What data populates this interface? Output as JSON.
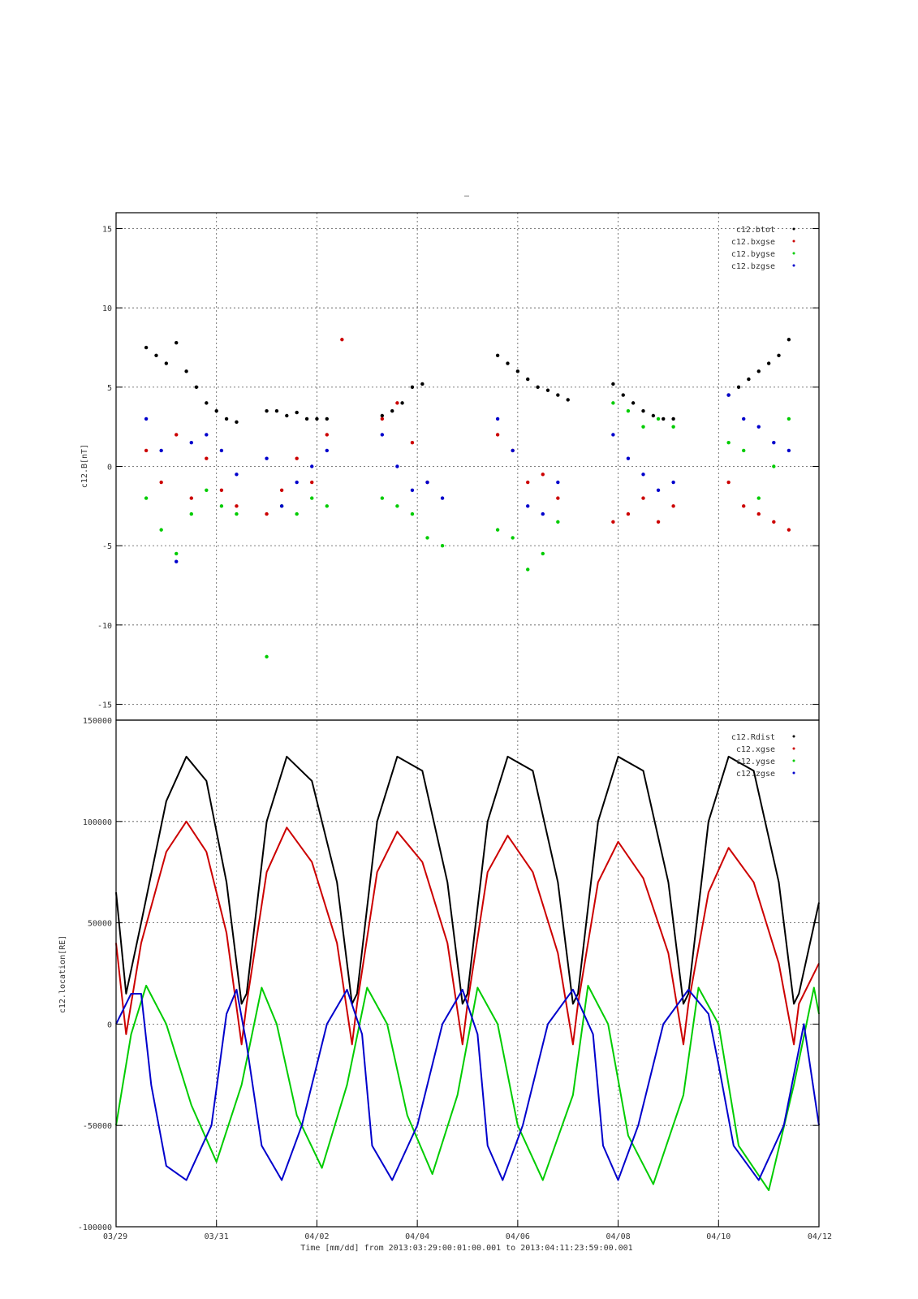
{
  "page_title_mark": "–",
  "footer_label": "Time [mm/dd]  from 2013:03:29:00:01:00.001  to  2013:04:11:23:59:00.001",
  "x_ticks": [
    "03/29",
    "03/31",
    "04/02",
    "04/04",
    "04/06",
    "04/08",
    "04/10",
    "04/12"
  ],
  "chart_data": [
    {
      "type": "scatter",
      "title": "",
      "ylabel": "c12.B[nT]",
      "xlabel": "Time [mm/dd]",
      "x_unit": "days since 03/29 00:00",
      "xlim": [
        0,
        14
      ],
      "ylim": [
        -16,
        16
      ],
      "yticks": [
        -15,
        -10,
        -5,
        0,
        5,
        10,
        15
      ],
      "ytick_labels": [
        "-15",
        "-10",
        "-5",
        "0",
        "5",
        "10",
        "15"
      ],
      "grid": true,
      "legend_position": "top-right",
      "series": [
        {
          "name": "c12.btot",
          "color": "#000000",
          "x": [
            0.6,
            0.8,
            1.0,
            1.2,
            1.4,
            1.6,
            1.8,
            2.0,
            2.2,
            2.4,
            3.0,
            3.2,
            3.4,
            3.6,
            3.8,
            4.0,
            4.2,
            5.3,
            5.5,
            5.7,
            5.9,
            6.1,
            7.6,
            7.8,
            8.0,
            8.2,
            8.4,
            8.6,
            8.8,
            9.0,
            9.9,
            10.1,
            10.3,
            10.5,
            10.7,
            10.9,
            11.1,
            12.2,
            12.4,
            12.6,
            12.8,
            13.0,
            13.2,
            13.4
          ],
          "y": [
            7.5,
            7.0,
            6.5,
            7.8,
            6.0,
            5.0,
            4.0,
            3.5,
            3.0,
            2.8,
            3.5,
            3.5,
            3.2,
            3.4,
            3.0,
            3.0,
            3.0,
            3.2,
            3.5,
            4.0,
            5.0,
            5.2,
            7.0,
            6.5,
            6.0,
            5.5,
            5.0,
            4.8,
            4.5,
            4.2,
            5.2,
            4.5,
            4.0,
            3.5,
            3.2,
            3.0,
            3.0,
            4.5,
            5.0,
            5.5,
            6.0,
            6.5,
            7.0,
            8.0
          ]
        },
        {
          "name": "c12.bxgse",
          "color": "#cc0000",
          "x": [
            0.6,
            0.9,
            1.2,
            1.5,
            1.8,
            2.1,
            2.4,
            3.0,
            3.3,
            3.6,
            3.9,
            4.2,
            4.5,
            5.3,
            5.6,
            5.9,
            6.2,
            7.6,
            7.9,
            8.2,
            8.5,
            8.8,
            9.9,
            10.2,
            10.5,
            10.8,
            11.1,
            12.2,
            12.5,
            12.8,
            13.1,
            13.4
          ],
          "y": [
            1.0,
            -1.0,
            2.0,
            -2.0,
            0.5,
            -1.5,
            -2.5,
            -3.0,
            -1.5,
            0.5,
            -1.0,
            2.0,
            8.0,
            3.0,
            4.0,
            1.5,
            -1.0,
            2.0,
            1.0,
            -1.0,
            -0.5,
            -2.0,
            -3.5,
            -3.0,
            -2.0,
            -3.5,
            -2.5,
            -1.0,
            -2.5,
            -3.0,
            -3.5,
            -4.0
          ]
        },
        {
          "name": "c12.bygse",
          "color": "#00cc00",
          "x": [
            0.6,
            0.9,
            1.2,
            1.5,
            1.8,
            2.1,
            2.4,
            3.0,
            3.3,
            3.6,
            3.9,
            4.2,
            5.3,
            5.6,
            5.9,
            6.2,
            6.5,
            7.6,
            7.9,
            8.2,
            8.5,
            8.8,
            9.9,
            10.2,
            10.5,
            10.8,
            11.1,
            12.2,
            12.5,
            12.8,
            13.1,
            13.4
          ],
          "y": [
            -2.0,
            -4.0,
            -5.5,
            -3.0,
            -1.5,
            -2.5,
            -3.0,
            -12.0,
            -2.5,
            -3.0,
            -2.0,
            -2.5,
            -2.0,
            -2.5,
            -3.0,
            -4.5,
            -5.0,
            -4.0,
            -4.5,
            -6.5,
            -5.5,
            -3.5,
            4.0,
            3.5,
            2.5,
            3.0,
            2.5,
            1.5,
            1.0,
            -2.0,
            0.0,
            3.0
          ]
        },
        {
          "name": "c12.bzgse",
          "color": "#0000cc",
          "x": [
            0.6,
            0.9,
            1.2,
            1.5,
            1.8,
            2.1,
            2.4,
            3.0,
            3.3,
            3.6,
            3.9,
            4.2,
            5.3,
            5.6,
            5.9,
            6.2,
            6.5,
            7.6,
            7.9,
            8.2,
            8.5,
            8.8,
            9.9,
            10.2,
            10.5,
            10.8,
            11.1,
            12.2,
            12.5,
            12.8,
            13.1,
            13.4
          ],
          "y": [
            3.0,
            1.0,
            -6.0,
            1.5,
            2.0,
            1.0,
            -0.5,
            0.5,
            -2.5,
            -1.0,
            0.0,
            1.0,
            2.0,
            0.0,
            -1.5,
            -1.0,
            -2.0,
            3.0,
            1.0,
            -2.5,
            -3.0,
            -1.0,
            2.0,
            0.5,
            -0.5,
            -1.5,
            -1.0,
            4.5,
            3.0,
            2.5,
            1.5,
            1.0
          ]
        }
      ]
    },
    {
      "type": "line",
      "title": "",
      "ylabel": "c12.location[RE]",
      "xlabel": "Time [mm/dd]",
      "x_unit": "days since 03/29 00:00",
      "xlim": [
        0,
        14
      ],
      "ylim": [
        -100000,
        150000
      ],
      "yticks": [
        -100000,
        -50000,
        0,
        50000,
        100000,
        150000
      ],
      "ytick_labels": [
        "-100000",
        "-50000",
        "0",
        "50000",
        "100000",
        "150000"
      ],
      "grid": true,
      "legend_position": "top-right",
      "series": [
        {
          "name": "c12.Rdist",
          "color": "#000000",
          "x": [
            0,
            0.2,
            0.5,
            1.0,
            1.4,
            1.8,
            2.2,
            2.5,
            2.6,
            3.0,
            3.4,
            3.9,
            4.4,
            4.7,
            4.8,
            5.2,
            5.6,
            6.1,
            6.6,
            6.9,
            7.0,
            7.4,
            7.8,
            8.3,
            8.8,
            9.1,
            9.2,
            9.6,
            10.0,
            10.5,
            11.0,
            11.3,
            11.4,
            11.8,
            12.2,
            12.7,
            13.2,
            13.5,
            13.6,
            14.0
          ],
          "y": [
            65000,
            15000,
            50000,
            110000,
            132000,
            120000,
            70000,
            10000,
            15000,
            100000,
            132000,
            120000,
            70000,
            10000,
            15000,
            100000,
            132000,
            125000,
            70000,
            10000,
            15000,
            100000,
            132000,
            125000,
            70000,
            10000,
            15000,
            100000,
            132000,
            125000,
            70000,
            10000,
            15000,
            100000,
            132000,
            125000,
            70000,
            10000,
            15000,
            60000
          ]
        },
        {
          "name": "c12.xgse",
          "color": "#cc0000",
          "x": [
            0,
            0.2,
            0.5,
            1.0,
            1.4,
            1.8,
            2.2,
            2.5,
            2.6,
            3.0,
            3.4,
            3.9,
            4.4,
            4.7,
            4.8,
            5.2,
            5.6,
            6.1,
            6.6,
            6.9,
            7.0,
            7.4,
            7.8,
            8.3,
            8.8,
            9.1,
            9.2,
            9.6,
            10.0,
            10.5,
            11.0,
            11.3,
            11.4,
            11.8,
            12.2,
            12.7,
            13.2,
            13.5,
            13.6,
            14.0
          ],
          "y": [
            40000,
            -5000,
            40000,
            85000,
            100000,
            85000,
            45000,
            -10000,
            10000,
            75000,
            97000,
            80000,
            40000,
            -10000,
            10000,
            75000,
            95000,
            80000,
            40000,
            -10000,
            10000,
            75000,
            93000,
            75000,
            35000,
            -10000,
            10000,
            70000,
            90000,
            72000,
            35000,
            -10000,
            10000,
            65000,
            87000,
            70000,
            30000,
            -10000,
            10000,
            30000
          ]
        },
        {
          "name": "c12.ygse",
          "color": "#00cc00",
          "x": [
            0,
            0.3,
            0.6,
            1.0,
            1.5,
            2.0,
            2.5,
            2.9,
            3.2,
            3.6,
            4.1,
            4.6,
            5.0,
            5.4,
            5.8,
            6.3,
            6.8,
            7.2,
            7.6,
            8.0,
            8.5,
            9.1,
            9.4,
            9.8,
            10.2,
            10.7,
            11.3,
            11.6,
            12.0,
            12.4,
            13.0,
            13.5,
            13.9,
            14.0
          ],
          "y": [
            -50000,
            -5000,
            19000,
            0,
            -40000,
            -68000,
            -30000,
            18000,
            0,
            -45000,
            -71000,
            -30000,
            18000,
            0,
            -45000,
            -74000,
            -35000,
            18000,
            0,
            -50000,
            -77000,
            -35000,
            19000,
            0,
            -55000,
            -79000,
            -35000,
            18000,
            0,
            -60000,
            -82000,
            -30000,
            18000,
            5000
          ]
        },
        {
          "name": "c12.zgse",
          "color": "#0000cc",
          "x": [
            0,
            0.3,
            0.5,
            0.7,
            1.0,
            1.4,
            1.9,
            2.2,
            2.4,
            2.6,
            2.9,
            3.3,
            3.7,
            4.2,
            4.6,
            4.9,
            5.1,
            5.5,
            6.0,
            6.5,
            6.9,
            7.2,
            7.4,
            7.7,
            8.1,
            8.6,
            9.1,
            9.5,
            9.7,
            10.0,
            10.4,
            10.9,
            11.4,
            11.8,
            12.0,
            12.3,
            12.8,
            13.3,
            13.7,
            14.0
          ],
          "y": [
            0,
            15000,
            15000,
            -30000,
            -70000,
            -77000,
            -50000,
            5000,
            17000,
            -10000,
            -60000,
            -77000,
            -50000,
            0,
            17000,
            -5000,
            -60000,
            -77000,
            -50000,
            0,
            17000,
            -5000,
            -60000,
            -77000,
            -50000,
            0,
            17000,
            -5000,
            -60000,
            -77000,
            -50000,
            0,
            17000,
            5000,
            -20000,
            -60000,
            -77000,
            -50000,
            0,
            -50000
          ]
        }
      ]
    }
  ]
}
